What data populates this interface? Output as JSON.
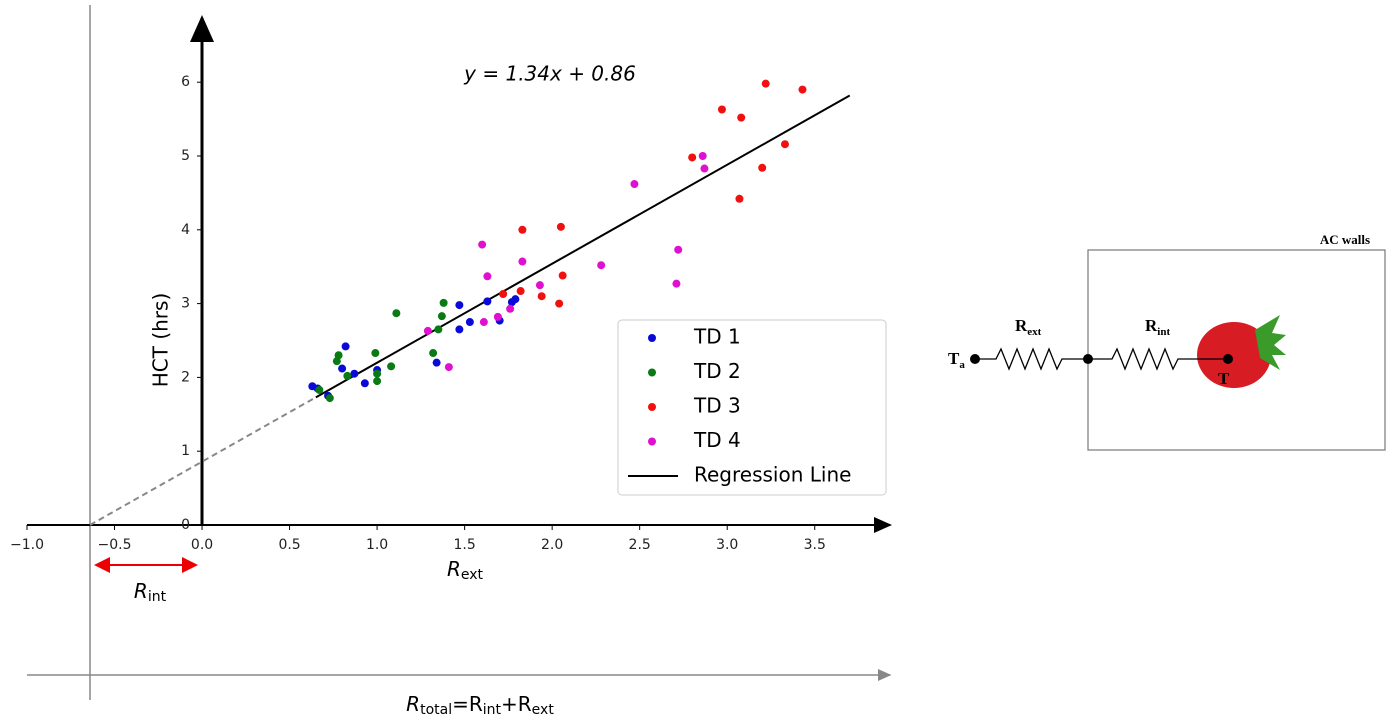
{
  "chart_data": {
    "type": "scatter",
    "equation": "y = 1.34x + 0.86",
    "xlabel": [
      "R",
      "ext"
    ],
    "ylabel": "HCT (hrs)",
    "interval_label": [
      "R",
      "int"
    ],
    "total_label": [
      "R",
      "total",
      "=R",
      "int",
      "+R",
      "ext"
    ],
    "xlim": [
      -1.0,
      3.93
    ],
    "ylim": [
      0,
      6.87
    ],
    "xticks": [
      {
        "value": -1.0,
        "label": "−1.0"
      },
      {
        "value": -0.5,
        "label": "−0.5"
      },
      {
        "value": 0,
        "label": "0.0"
      },
      0.5,
      {
        "value": 1.0,
        "label": "1.0"
      },
      1.5,
      {
        "value": 2.0,
        "label": "2.0"
      },
      2.5,
      {
        "value": 3.0,
        "label": "3.0"
      },
      3.5
    ],
    "yticks": [
      0,
      1,
      2,
      3,
      4,
      5,
      6
    ],
    "legend": "lower right",
    "series": [
      {
        "name": "TD 1",
        "kind": "scatter",
        "color": "#0a0ad8",
        "x": [
          0.63,
          0.66,
          0.72,
          0.8,
          0.82,
          0.87,
          0.93,
          1.0,
          1.34,
          1.47,
          1.47,
          1.53,
          1.63,
          1.7,
          1.77,
          1.79
        ],
        "values": [
          1.88,
          1.85,
          1.75,
          2.12,
          2.42,
          2.05,
          1.92,
          2.1,
          2.2,
          2.65,
          2.98,
          2.75,
          3.03,
          2.77,
          3.02,
          3.06
        ]
      },
      {
        "name": "TD 2",
        "kind": "scatter",
        "color": "#0a7a14",
        "x": [
          0.67,
          0.73,
          0.77,
          0.78,
          0.83,
          0.99,
          1.0,
          1.0,
          1.08,
          1.11,
          1.32,
          1.35,
          1.37,
          1.38
        ],
        "values": [
          1.83,
          1.72,
          2.22,
          2.3,
          2.02,
          2.33,
          2.05,
          1.95,
          2.15,
          2.87,
          2.33,
          2.65,
          2.83,
          3.01
        ]
      },
      {
        "name": "TD 3",
        "kind": "scatter",
        "color": "#f01010",
        "x": [
          1.72,
          1.82,
          1.83,
          1.94,
          2.04,
          2.05,
          2.06,
          2.8,
          2.97,
          3.08,
          3.07,
          3.2,
          3.22,
          3.33,
          3.43
        ],
        "values": [
          3.13,
          3.17,
          4.0,
          3.1,
          3.0,
          4.04,
          3.38,
          4.98,
          5.63,
          5.52,
          4.42,
          4.84,
          5.98,
          5.16,
          5.9
        ]
      },
      {
        "name": "TD 4",
        "kind": "scatter",
        "color": "#e010d0",
        "x": [
          1.29,
          1.41,
          1.6,
          1.61,
          1.63,
          1.69,
          1.76,
          1.83,
          1.93,
          2.28,
          2.47,
          2.71,
          2.72,
          2.86,
          2.87
        ],
        "values": [
          2.63,
          2.14,
          3.8,
          2.75,
          3.37,
          2.82,
          2.93,
          3.57,
          3.25,
          3.52,
          4.62,
          3.27,
          3.73,
          5.0,
          4.83
        ]
      },
      {
        "name": "Regression Line",
        "kind": "line",
        "style": "solid",
        "color": "#000000",
        "x": [
          0.65,
          3.7
        ],
        "values": [
          1.73,
          5.82
        ]
      },
      {
        "kind": "line",
        "style": "dashed",
        "color": "#888888",
        "x": [
          -0.64,
          0.65
        ],
        "values": [
          0,
          1.73
        ]
      }
    ]
  },
  "diagram": {
    "box_label": "AC walls",
    "ambient": [
      "T",
      "a"
    ],
    "external": [
      "R",
      "ext"
    ],
    "internal": [
      "R",
      "int"
    ],
    "core": "T"
  }
}
